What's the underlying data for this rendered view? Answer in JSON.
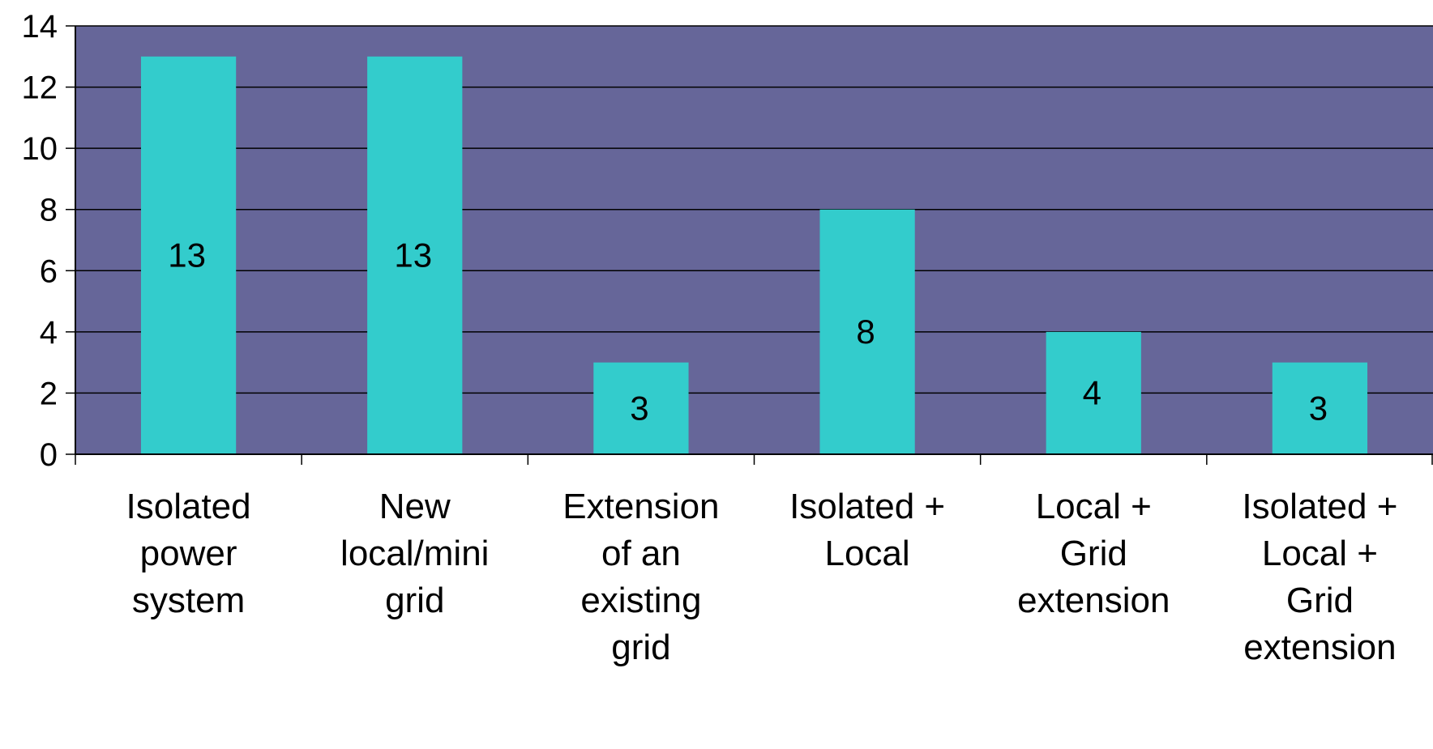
{
  "chart_data": {
    "type": "bar",
    "title": "",
    "xlabel": "",
    "ylabel": "",
    "categories": [
      [
        "Isolated",
        "power",
        "system"
      ],
      [
        "New",
        "local/mini",
        "grid"
      ],
      [
        "Extension",
        "of an",
        "existing",
        "grid"
      ],
      [
        "Isolated +",
        "Local"
      ],
      [
        "Local +",
        "Grid",
        "extension"
      ],
      [
        "Isolated +",
        "Local +",
        "Grid",
        "extension"
      ]
    ],
    "values": [
      13,
      13,
      3,
      8,
      4,
      3
    ],
    "data_labels": [
      "13",
      "13",
      "3",
      "8",
      "4",
      "3"
    ],
    "ylim": [
      0,
      14
    ],
    "yticks": [
      0,
      2,
      4,
      6,
      8,
      10,
      12,
      14
    ],
    "ytick_labels": [
      "0",
      "2",
      "4",
      "6",
      "8",
      "10",
      "12",
      "14"
    ],
    "grid": true,
    "legend": "none",
    "colors": {
      "plot_background": "#666699",
      "bar": "#33CCCC",
      "gridline": "#000000",
      "axis": "#000000",
      "text": "#000000"
    }
  }
}
